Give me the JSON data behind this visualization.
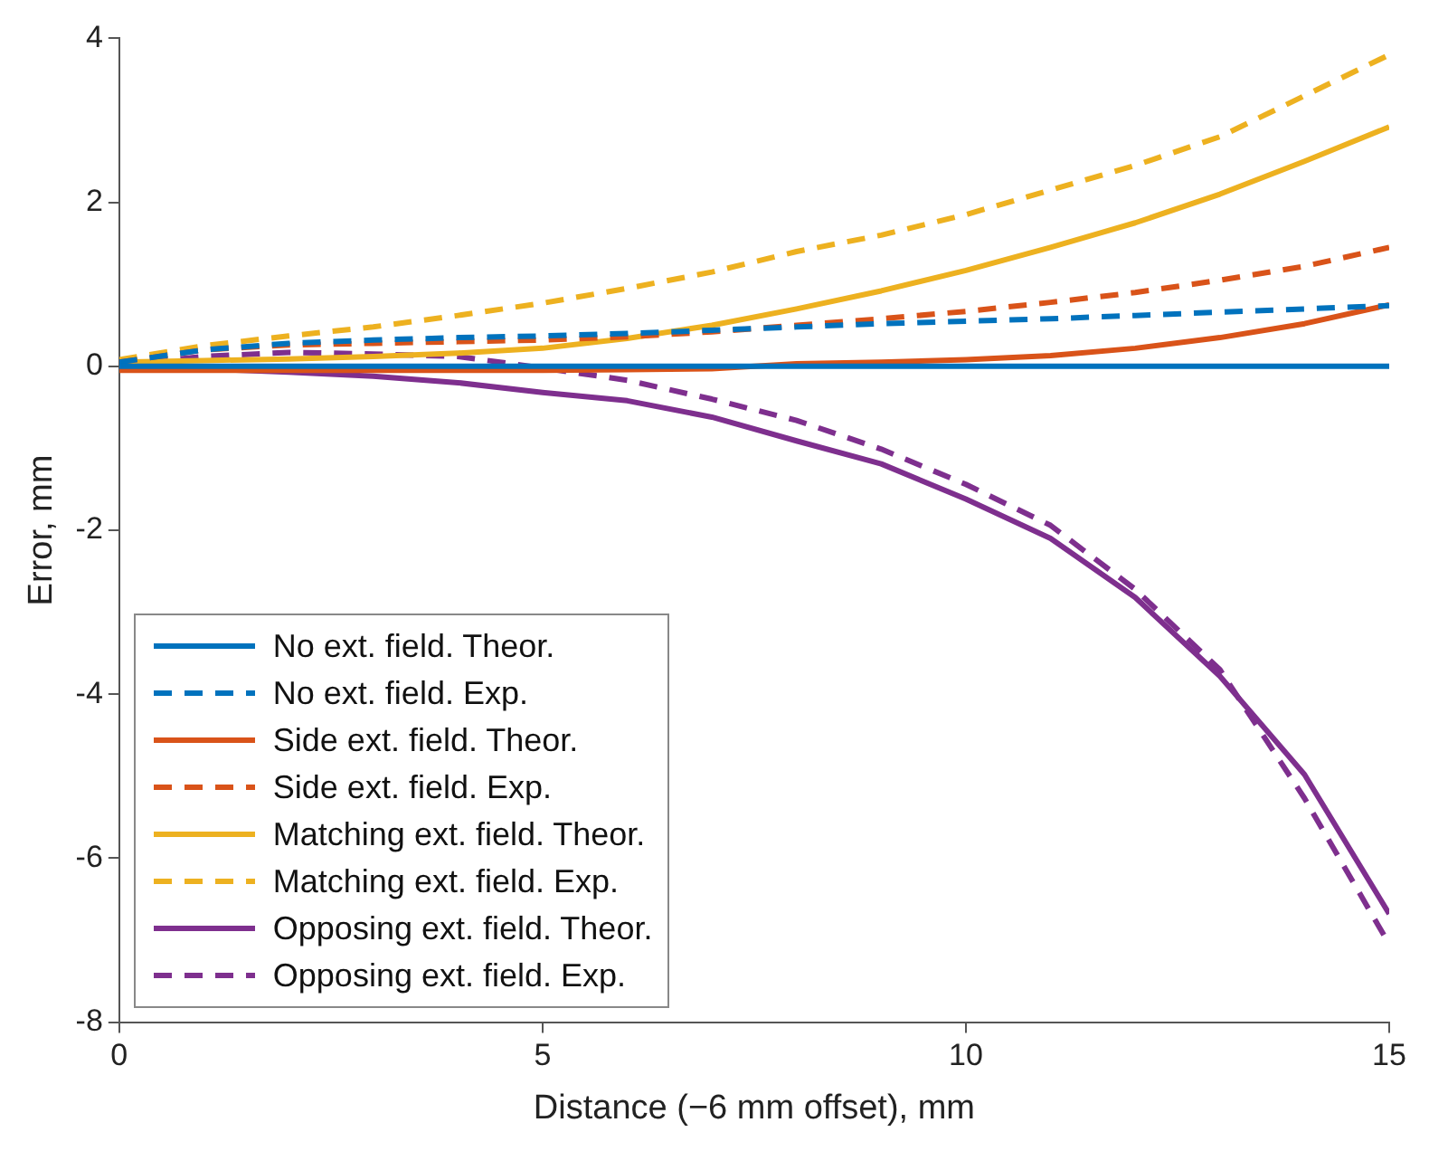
{
  "chart_data": {
    "type": "line",
    "xlabel": "Distance (−6 mm offset), mm",
    "ylabel": "Error, mm",
    "x": [
      0,
      1,
      2,
      3,
      4,
      5,
      6,
      7,
      8,
      9,
      10,
      11,
      12,
      13,
      14,
      15
    ],
    "series": [
      {
        "name": "No ext. field. Theor.",
        "color": "#0072bd",
        "line_style": "solid",
        "values": [
          0,
          0,
          0,
          0,
          0,
          0,
          0,
          0,
          0,
          0,
          0,
          0,
          0,
          0,
          0,
          0
        ]
      },
      {
        "name": "No ext. field. Exp.",
        "color": "#0072bd",
        "line_style": "dashed",
        "values": [
          0.05,
          0.2,
          0.28,
          0.32,
          0.35,
          0.37,
          0.4,
          0.44,
          0.48,
          0.52,
          0.55,
          0.58,
          0.62,
          0.66,
          0.7,
          0.74
        ]
      },
      {
        "name": "Side ext. field. Theor.",
        "color": "#d95319",
        "line_style": "solid",
        "values": [
          -0.05,
          -0.05,
          -0.05,
          -0.05,
          -0.05,
          -0.05,
          -0.04,
          -0.03,
          0.03,
          0.05,
          0.08,
          0.13,
          0.22,
          0.35,
          0.52,
          0.75
        ]
      },
      {
        "name": "Side ext. field. Exp.",
        "color": "#d95319",
        "line_style": "dashed",
        "values": [
          0.05,
          0.2,
          0.26,
          0.28,
          0.3,
          0.32,
          0.36,
          0.42,
          0.5,
          0.58,
          0.67,
          0.78,
          0.9,
          1.05,
          1.22,
          1.45
        ]
      },
      {
        "name": "Matching ext. field. Theor.",
        "color": "#edb120",
        "line_style": "solid",
        "values": [
          0.05,
          0.07,
          0.09,
          0.12,
          0.16,
          0.22,
          0.34,
          0.5,
          0.7,
          0.92,
          1.17,
          1.45,
          1.75,
          2.1,
          2.5,
          2.92
        ]
      },
      {
        "name": "Matching ext. field. Exp.",
        "color": "#edb120",
        "line_style": "dashed",
        "values": [
          0.08,
          0.25,
          0.37,
          0.48,
          0.62,
          0.77,
          0.95,
          1.15,
          1.4,
          1.6,
          1.85,
          2.15,
          2.45,
          2.8,
          3.3,
          3.8
        ]
      },
      {
        "name": "Opposing ext. field. Theor.",
        "color": "#7e2f8e",
        "line_style": "solid",
        "values": [
          0,
          -0.03,
          -0.07,
          -0.12,
          -0.2,
          -0.32,
          -0.42,
          -0.62,
          -0.91,
          -1.19,
          -1.62,
          -2.1,
          -2.82,
          -3.78,
          -4.98,
          -6.68
        ]
      },
      {
        "name": "Opposing ext. field. Exp.",
        "color": "#7e2f8e",
        "line_style": "dashed",
        "values": [
          0.02,
          0.12,
          0.17,
          0.15,
          0.12,
          -0.02,
          -0.17,
          -0.4,
          -0.66,
          -1.01,
          -1.44,
          -1.94,
          -2.72,
          -3.7,
          -5.27,
          -7.05
        ]
      }
    ],
    "xlim": [
      0,
      15
    ],
    "xticks": [
      0,
      5,
      10,
      15
    ],
    "ylim": [
      -8,
      4
    ],
    "yticks": [
      -8,
      -6,
      -4,
      -2,
      0,
      2,
      4
    ],
    "grid": false,
    "legend": "bottom left",
    "marker": "none"
  }
}
